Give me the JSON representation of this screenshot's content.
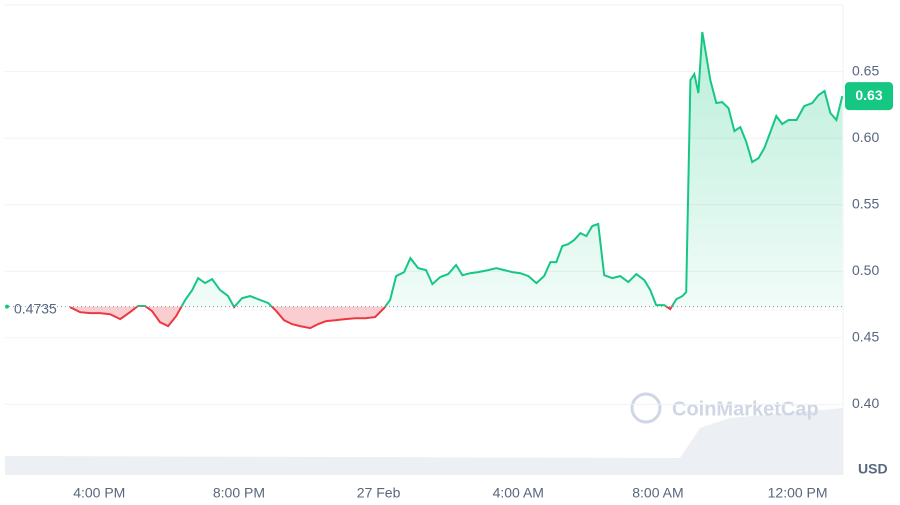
{
  "chart_data": {
    "type": "line",
    "x": [
      15.16,
      15.45,
      15.74,
      16.02,
      16.31,
      16.6,
      16.88,
      17.11,
      17.31,
      17.51,
      17.74,
      17.97,
      18.2,
      18.46,
      18.66,
      18.83,
      19.03,
      19.23,
      19.46,
      19.69,
      19.86,
      20.09,
      20.32,
      20.61,
      20.84,
      21.07,
      21.29,
      21.52,
      21.75,
      22.04,
      22.27,
      22.5,
      22.76,
      23.04,
      23.33,
      23.62,
      23.9,
      24.16,
      24.33,
      24.5,
      24.73,
      24.91,
      25.13,
      25.36,
      25.54,
      25.76,
      25.99,
      26.22,
      26.4,
      26.62,
      26.85,
      27.14,
      27.37,
      27.6,
      27.83,
      28.06,
      28.29,
      28.52,
      28.74,
      28.92,
      29.09,
      29.26,
      29.43,
      29.6,
      29.78,
      29.95,
      30.12,
      30.29,
      30.46,
      30.69,
      30.92,
      31.15,
      31.38,
      31.61,
      31.78,
      31.95,
      32.18,
      32.35,
      32.53,
      32.7,
      32.81,
      32.93,
      33.04,
      33.16,
      33.27,
      33.39,
      33.5,
      33.67,
      33.84,
      34.02,
      34.19,
      34.36,
      34.53,
      34.7,
      34.88,
      35.05,
      35.22,
      35.39,
      35.56,
      35.74,
      35.97,
      36.19,
      36.42,
      36.6,
      36.77,
      36.94,
      37.11,
      37.28
    ],
    "values": [
      0.4731,
      0.4693,
      0.4686,
      0.4686,
      0.4678,
      0.4641,
      0.4693,
      0.4739,
      0.4739,
      0.4701,
      0.4618,
      0.4588,
      0.4663,
      0.4784,
      0.4859,
      0.4949,
      0.4911,
      0.4941,
      0.4859,
      0.4814,
      0.4731,
      0.4799,
      0.4814,
      0.4784,
      0.4761,
      0.4701,
      0.4633,
      0.4603,
      0.4588,
      0.4573,
      0.4603,
      0.4626,
      0.4633,
      0.4641,
      0.4648,
      0.4648,
      0.4656,
      0.4724,
      0.4784,
      0.4964,
      0.4994,
      0.5099,
      0.5024,
      0.5009,
      0.4904,
      0.4956,
      0.4979,
      0.5047,
      0.4971,
      0.4986,
      0.4994,
      0.5009,
      0.5024,
      0.5009,
      0.4994,
      0.4986,
      0.4964,
      0.4911,
      0.4964,
      0.5069,
      0.5069,
      0.5189,
      0.5204,
      0.5234,
      0.5287,
      0.5264,
      0.534,
      0.5355,
      0.4971,
      0.4949,
      0.4964,
      0.4919,
      0.4979,
      0.4934,
      0.4859,
      0.4746,
      0.4746,
      0.4716,
      0.4791,
      0.4814,
      0.4844,
      0.6437,
      0.6482,
      0.6339,
      0.6797,
      0.6609,
      0.6437,
      0.6264,
      0.6271,
      0.6226,
      0.6053,
      0.6083,
      0.5971,
      0.582,
      0.585,
      0.5926,
      0.6046,
      0.6166,
      0.6106,
      0.6136,
      0.6136,
      0.6241,
      0.6264,
      0.6324,
      0.6354,
      0.6189,
      0.6136,
      0.6316
    ],
    "up_color": "#16c784",
    "down_color": "#ea3943",
    "baseline": 0.4735,
    "price_tag": {
      "value": 0.6316,
      "label": "0.63"
    },
    "xlim": [
      13.3,
      37.3
    ],
    "xticks": [
      {
        "value": 16,
        "label": "4:00 PM"
      },
      {
        "value": 20,
        "label": "8:00 PM"
      },
      {
        "value": 24,
        "label": "27 Feb"
      },
      {
        "value": 28,
        "label": "4:00 AM"
      },
      {
        "value": 32,
        "label": "8:00 AM"
      },
      {
        "value": 36,
        "label": "12:00 PM"
      }
    ],
    "ylim": [
      0.347,
      0.7
    ],
    "yticks": [
      {
        "value": 0.4,
        "label": "0.40"
      },
      0.45,
      {
        "value": 0.5,
        "label": "0.50"
      },
      0.55,
      {
        "value": 0.6,
        "label": "0.60"
      },
      0.65
    ],
    "y_unit": "USD",
    "watermark": "CoinMarketCap",
    "grid": true
  }
}
